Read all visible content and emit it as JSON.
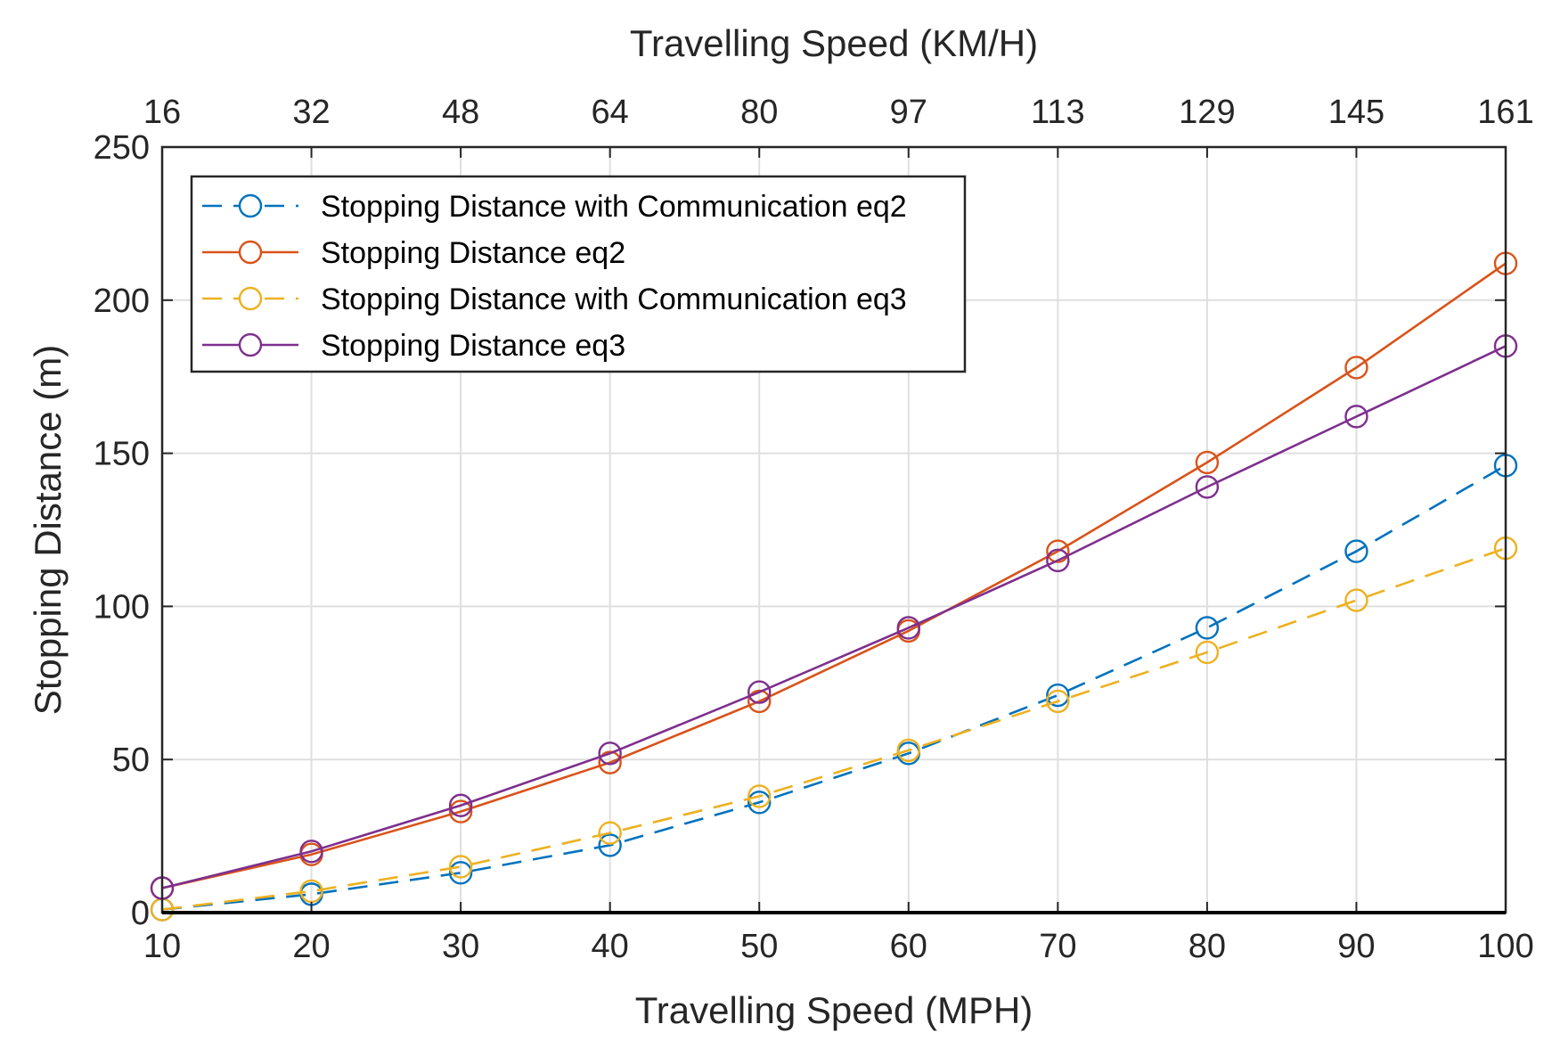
{
  "chart_data": {
    "type": "line",
    "title": "",
    "xlabel": "Travelling Speed (MPH)",
    "x2label": "Travelling Speed (KM/H)",
    "ylabel": "Stopping Distance (m)",
    "x": [
      10,
      20,
      30,
      40,
      50,
      60,
      70,
      80,
      90,
      100
    ],
    "xlim": [
      10,
      100
    ],
    "ylim": [
      0,
      250
    ],
    "xticks": [
      "10",
      "20",
      "30",
      "40",
      "50",
      "60",
      "70",
      "80",
      "90",
      "100"
    ],
    "x2ticks": [
      "16",
      "32",
      "48",
      "64",
      "80",
      "97",
      "113",
      "129",
      "145",
      "161"
    ],
    "yticks": [
      "0",
      "50",
      "100",
      "150",
      "200",
      "250"
    ],
    "grid": true,
    "legend_position": "top-left",
    "series": [
      {
        "name": "Stopping Distance with Communication eq2",
        "color": "#0072BD",
        "dash": "dashed",
        "marker": "circle",
        "values": [
          1,
          6,
          13,
          22,
          36,
          52,
          71,
          93,
          118,
          146
        ]
      },
      {
        "name": "Stopping Distance eq2",
        "color": "#D95319",
        "dash": "solid",
        "marker": "circle",
        "values": [
          8,
          19,
          33,
          49,
          69,
          92,
          118,
          147,
          178,
          212
        ]
      },
      {
        "name": "Stopping Distance with Communication eq3",
        "color": "#EDB120",
        "dash": "dashed",
        "marker": "circle",
        "values": [
          1,
          7,
          15,
          26,
          38,
          53,
          69,
          85,
          102,
          119
        ]
      },
      {
        "name": "Stopping Distance eq3",
        "color": "#7E2F8E",
        "dash": "solid",
        "marker": "circle",
        "values": [
          8,
          20,
          35,
          52,
          72,
          93,
          115,
          139,
          162,
          185
        ]
      }
    ]
  }
}
